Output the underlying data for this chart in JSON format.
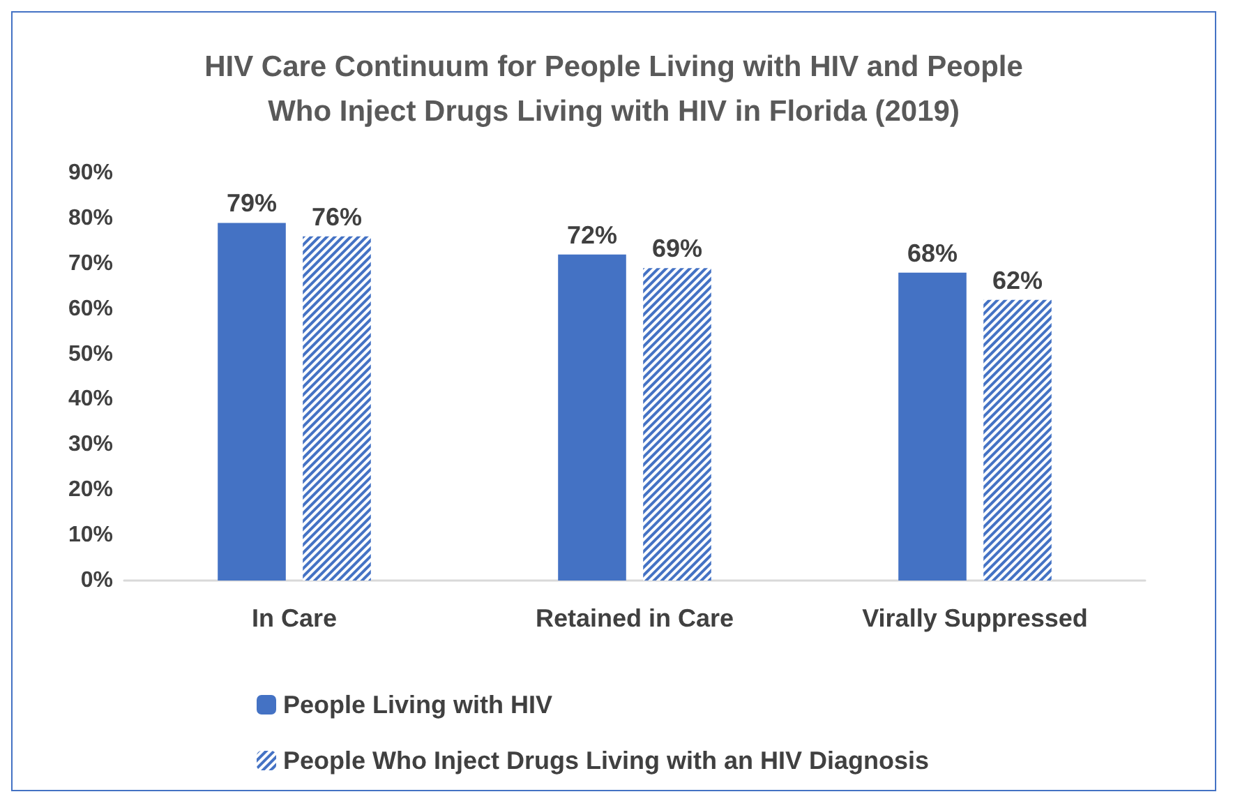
{
  "chart_data": {
    "type": "bar",
    "title": "HIV Care Continuum for People Living with HIV and People\nWho Inject Drugs Living with HIV in Florida (2019)",
    "categories": [
      "In Care",
      "Retained in Care",
      "Virally Suppressed"
    ],
    "series": [
      {
        "name": "People Living with HIV",
        "color": "#4472c4",
        "values": [
          79,
          72,
          68
        ],
        "value_labels": [
          "79%",
          "72%",
          "68%"
        ]
      },
      {
        "name": "People Who Inject Drugs Living with an HIV Diagnosis",
        "color": "#4472c4",
        "values": [
          76,
          69,
          62
        ],
        "value_labels": [
          "76%",
          "69%",
          "62%"
        ]
      }
    ],
    "ylim": [
      0,
      90
    ],
    "yticks": [
      {
        "value": 0,
        "label": "0%"
      },
      {
        "value": 10,
        "label": "10%"
      },
      {
        "value": 20,
        "label": "20%"
      },
      {
        "value": 30,
        "label": "30%"
      },
      {
        "value": 40,
        "label": "40%"
      },
      {
        "value": 50,
        "label": "50%"
      },
      {
        "value": 60,
        "label": "60%"
      },
      {
        "value": 70,
        "label": "70%"
      },
      {
        "value": 80,
        "label": "80%"
      },
      {
        "value": 90,
        "label": "90%"
      }
    ],
    "grid": false,
    "legend": "bottom left"
  }
}
